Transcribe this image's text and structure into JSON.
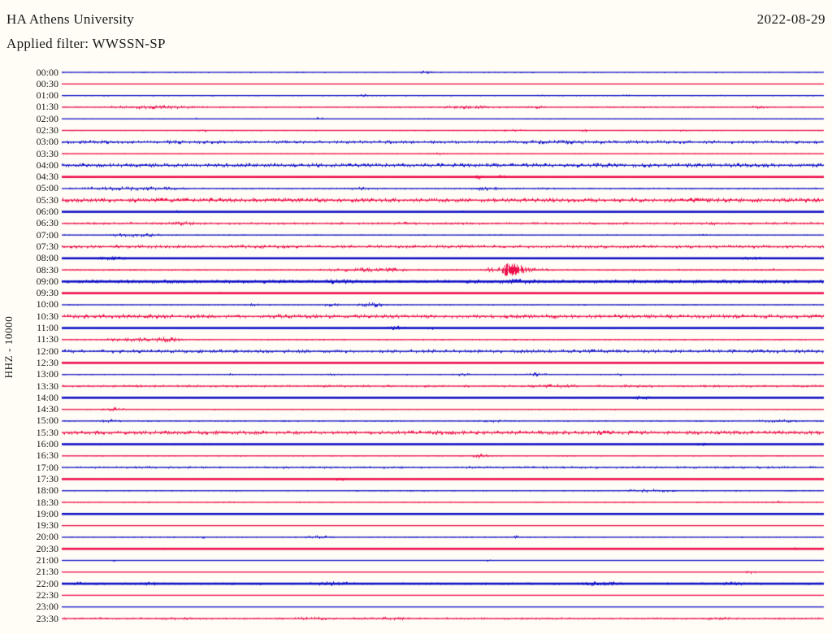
{
  "header": {
    "station": "HA Athens University",
    "date": "2022-08-29",
    "filter": "Applied filter: WWSSN-SP"
  },
  "axis": {
    "channel_label": "HHZ - 10000"
  },
  "colors": {
    "trace_blue": "#1010c8",
    "trace_red": "#ed0d4a",
    "background": "#fffdf5",
    "text": "#1a1a1a"
  },
  "chart_data": {
    "type": "helicorder",
    "row_interval_minutes": 30,
    "rows_start": "00:00",
    "rows_end": "23:30",
    "event": {
      "row_label": "08:30",
      "position_fraction": 0.585,
      "amplitude": "large"
    },
    "rows": [
      {
        "label": "00:00",
        "color": "blue",
        "bold": false,
        "noise": 0.5,
        "bursts": [
          [
            0.46,
            0.03,
            1.8
          ]
        ]
      },
      {
        "label": "00:30",
        "color": "red",
        "bold": false,
        "noise": 0.3,
        "bursts": []
      },
      {
        "label": "01:00",
        "color": "blue",
        "bold": false,
        "noise": 0.6,
        "bursts": [
          [
            0.38,
            0.03,
            1.6
          ],
          [
            0.62,
            0.02,
            1.5
          ],
          [
            0.73,
            0.02,
            1.5
          ],
          [
            0.86,
            0.012,
            1.5
          ]
        ]
      },
      {
        "label": "01:30",
        "color": "red",
        "bold": false,
        "noise": 0.9,
        "bursts": [
          [
            0.04,
            0.16,
            2.2
          ],
          [
            0.47,
            0.12,
            1.8
          ],
          [
            0.6,
            0.05,
            1.7
          ],
          [
            0.8,
            0.03,
            1.6
          ],
          [
            0.9,
            0.03,
            1.8
          ]
        ]
      },
      {
        "label": "02:00",
        "color": "blue",
        "bold": false,
        "noise": 0.4,
        "bursts": [
          [
            0.17,
            0.01,
            1.5
          ],
          [
            0.33,
            0.015,
            1.8
          ]
        ]
      },
      {
        "label": "02:30",
        "color": "red",
        "bold": false,
        "noise": 0.5,
        "bursts": [
          [
            0.175,
            0.02,
            1.6
          ],
          [
            0.56,
            0.06,
            1.8
          ],
          [
            0.68,
            0.012,
            1.8
          ],
          [
            0.8,
            0.025,
            1.6
          ]
        ]
      },
      {
        "label": "03:00",
        "color": "blue",
        "bold": false,
        "noise": 1.8,
        "bursts": [
          [
            0.45,
            0.5,
            2.2
          ],
          [
            0.12,
            0.06,
            2.2
          ]
        ]
      },
      {
        "label": "03:30",
        "color": "red",
        "bold": false,
        "noise": 0.4,
        "bursts": [
          [
            0.475,
            0.03,
            1.8
          ]
        ]
      },
      {
        "label": "04:00",
        "color": "blue",
        "bold": false,
        "noise": 2.2,
        "bursts": [
          [
            0.5,
            0.45,
            2.4
          ]
        ]
      },
      {
        "label": "04:30",
        "color": "red",
        "bold": true,
        "noise": 0.4,
        "bursts": [
          [
            0.54,
            0.012,
            3.2
          ],
          [
            0.565,
            0.02,
            2.2
          ],
          [
            0.26,
            0.01,
            1.5
          ]
        ]
      },
      {
        "label": "05:00",
        "color": "blue",
        "bold": false,
        "noise": 1.0,
        "bursts": [
          [
            0.0,
            0.18,
            2.4
          ],
          [
            0.37,
            0.05,
            2.0
          ],
          [
            0.53,
            0.05,
            2.4
          ],
          [
            0.62,
            0.02,
            1.6
          ]
        ]
      },
      {
        "label": "05:30",
        "color": "red",
        "bold": false,
        "noise": 2.4,
        "bursts": []
      },
      {
        "label": "06:00",
        "color": "blue",
        "bold": true,
        "noise": 0.7,
        "bursts": [
          [
            0.14,
            0.02,
            2.0
          ],
          [
            0.52,
            0.02,
            1.6
          ]
        ]
      },
      {
        "label": "06:30",
        "color": "red",
        "bold": false,
        "noise": 1.4,
        "bursts": [
          [
            0.12,
            0.07,
            2.2
          ],
          [
            0.42,
            0.05,
            1.8
          ],
          [
            0.54,
            0.02,
            1.8
          ],
          [
            0.82,
            0.06,
            2.0
          ],
          [
            0.94,
            0.02,
            1.8
          ]
        ]
      },
      {
        "label": "07:00",
        "color": "blue",
        "bold": false,
        "noise": 0.7,
        "bursts": [
          [
            0.05,
            0.1,
            2.2
          ],
          [
            0.33,
            0.012,
            1.5
          ],
          [
            0.54,
            0.012,
            1.5
          ],
          [
            0.83,
            0.02,
            1.5
          ]
        ]
      },
      {
        "label": "07:30",
        "color": "red",
        "bold": false,
        "noise": 1.8,
        "bursts": [
          [
            0.17,
            0.18,
            2.2
          ]
        ]
      },
      {
        "label": "08:00",
        "color": "blue",
        "bold": true,
        "noise": 0.8,
        "bursts": [
          [
            0.04,
            0.05,
            2.2
          ],
          [
            0.88,
            0.05,
            1.8
          ]
        ]
      },
      {
        "label": "08:30",
        "color": "red",
        "bold": false,
        "noise": 0.9,
        "bursts": [
          [
            0.1,
            0.02,
            1.4
          ],
          [
            0.33,
            0.12,
            2.2
          ],
          [
            0.4,
            0.06,
            2.6
          ],
          [
            0.553,
            0.016,
            3.0
          ],
          [
            0.571,
            0.038,
            7.5,
            0.05
          ],
          [
            0.75,
            0.012,
            1.8
          ],
          [
            0.92,
            0.02,
            1.6
          ]
        ]
      },
      {
        "label": "09:00",
        "color": "blue",
        "bold": true,
        "noise": 2.0,
        "bursts": [
          [
            0.33,
            0.07,
            2.8
          ],
          [
            0.55,
            0.09,
            2.8
          ],
          [
            0.86,
            0.03,
            2.4
          ]
        ]
      },
      {
        "label": "09:30",
        "color": "red",
        "bold": true,
        "noise": 0.8,
        "bursts": []
      },
      {
        "label": "10:00",
        "color": "blue",
        "bold": false,
        "noise": 0.7,
        "bursts": [
          [
            0.24,
            0.02,
            1.8
          ],
          [
            0.34,
            0.025,
            2.2
          ],
          [
            0.385,
            0.045,
            2.8
          ],
          [
            0.5,
            0.012,
            1.8
          ]
        ]
      },
      {
        "label": "10:30",
        "color": "red",
        "bold": false,
        "noise": 2.2,
        "bursts": []
      },
      {
        "label": "11:00",
        "color": "blue",
        "bold": true,
        "noise": 0.7,
        "bursts": [
          [
            0.425,
            0.03,
            2.4
          ],
          [
            0.475,
            0.02,
            2.0
          ]
        ]
      },
      {
        "label": "11:30",
        "color": "red",
        "bold": false,
        "noise": 0.8,
        "bursts": [
          [
            0.04,
            0.13,
            2.4
          ],
          [
            0.115,
            0.045,
            3.0
          ]
        ]
      },
      {
        "label": "12:00",
        "color": "blue",
        "bold": false,
        "noise": 2.0,
        "bursts": []
      },
      {
        "label": "12:30",
        "color": "red",
        "bold": true,
        "noise": 0.4,
        "bursts": []
      },
      {
        "label": "13:00",
        "color": "blue",
        "bold": false,
        "noise": 0.4,
        "bursts": [
          [
            0.215,
            0.012,
            1.5
          ],
          [
            0.345,
            0.03,
            1.6
          ],
          [
            0.51,
            0.03,
            1.8
          ],
          [
            0.6,
            0.045,
            2.2
          ],
          [
            0.725,
            0.012,
            1.8
          ],
          [
            0.88,
            0.012,
            1.5
          ]
        ]
      },
      {
        "label": "13:30",
        "color": "red",
        "bold": false,
        "noise": 1.4,
        "bursts": [
          [
            0.6,
            0.1,
            2.4
          ]
        ]
      },
      {
        "label": "14:00",
        "color": "blue",
        "bold": true,
        "noise": 0.5,
        "bursts": [
          [
            0.745,
            0.03,
            2.4
          ]
        ]
      },
      {
        "label": "14:30",
        "color": "red",
        "bold": false,
        "noise": 0.4,
        "bursts": [
          [
            0.05,
            0.035,
            2.0
          ]
        ]
      },
      {
        "label": "15:00",
        "color": "blue",
        "bold": false,
        "noise": 0.7,
        "bursts": [
          [
            0.045,
            0.035,
            2.4
          ],
          [
            0.54,
            0.05,
            1.8
          ],
          [
            0.9,
            0.08,
            1.9
          ]
        ]
      },
      {
        "label": "15:30",
        "color": "red",
        "bold": false,
        "noise": 2.2,
        "bursts": []
      },
      {
        "label": "16:00",
        "color": "blue",
        "bold": true,
        "noise": 0.8,
        "bursts": [
          [
            0.83,
            0.02,
            2.0
          ]
        ]
      },
      {
        "label": "16:30",
        "color": "red",
        "bold": false,
        "noise": 0.4,
        "bursts": [
          [
            0.535,
            0.025,
            2.6
          ]
        ]
      },
      {
        "label": "17:00",
        "color": "blue",
        "bold": false,
        "noise": 1.3,
        "bursts": []
      },
      {
        "label": "17:30",
        "color": "red",
        "bold": true,
        "noise": 0.5,
        "bursts": [
          [
            0.355,
            0.02,
            2.0
          ]
        ]
      },
      {
        "label": "18:00",
        "color": "blue",
        "bold": false,
        "noise": 0.4,
        "bursts": [
          [
            0.205,
            0.012,
            1.5
          ],
          [
            0.73,
            0.08,
            2.2
          ]
        ]
      },
      {
        "label": "18:30",
        "color": "red",
        "bold": false,
        "noise": 0.4,
        "bursts": [
          [
            0.21,
            0.02,
            1.5
          ],
          [
            0.93,
            0.02,
            1.5
          ]
        ]
      },
      {
        "label": "19:00",
        "color": "blue",
        "bold": true,
        "noise": 0.4,
        "bursts": []
      },
      {
        "label": "19:30",
        "color": "red",
        "bold": false,
        "noise": 0.3,
        "bursts": []
      },
      {
        "label": "20:00",
        "color": "blue",
        "bold": false,
        "noise": 0.5,
        "bursts": [
          [
            0.18,
            0.012,
            1.5
          ],
          [
            0.31,
            0.05,
            2.0
          ],
          [
            0.59,
            0.012,
            2.0
          ]
        ]
      },
      {
        "label": "20:30",
        "color": "red",
        "bold": true,
        "noise": 0.5,
        "bursts": [
          [
            0.125,
            0.02,
            1.6
          ],
          [
            0.95,
            0.03,
            1.6
          ]
        ]
      },
      {
        "label": "21:00",
        "color": "blue",
        "bold": false,
        "noise": 0.3,
        "bursts": [
          [
            0.065,
            0.006,
            1.6
          ],
          [
            0.555,
            0.008,
            2.0
          ]
        ]
      },
      {
        "label": "21:30",
        "color": "red",
        "bold": false,
        "noise": 0.3,
        "bursts": [
          [
            0.895,
            0.02,
            2.0
          ]
        ]
      },
      {
        "label": "22:00",
        "color": "blue",
        "bold": true,
        "noise": 1.3,
        "bursts": [
          [
            0.0,
            0.04,
            2.2
          ],
          [
            0.095,
            0.04,
            2.2
          ],
          [
            0.31,
            0.09,
            2.4
          ],
          [
            0.66,
            0.1,
            2.4
          ],
          [
            0.855,
            0.05,
            2.2
          ]
        ]
      },
      {
        "label": "22:30",
        "color": "red",
        "bold": false,
        "noise": 0.3,
        "bursts": []
      },
      {
        "label": "23:00",
        "color": "blue",
        "bold": false,
        "noise": 0.3,
        "bursts": []
      },
      {
        "label": "23:30",
        "color": "red",
        "bold": false,
        "noise": 1.2,
        "bursts": [
          [
            0.12,
            0.06,
            2.0
          ],
          [
            0.28,
            0.09,
            2.0
          ],
          [
            0.4,
            0.07,
            2.0
          ],
          [
            0.83,
            0.06,
            2.0
          ]
        ]
      }
    ]
  }
}
